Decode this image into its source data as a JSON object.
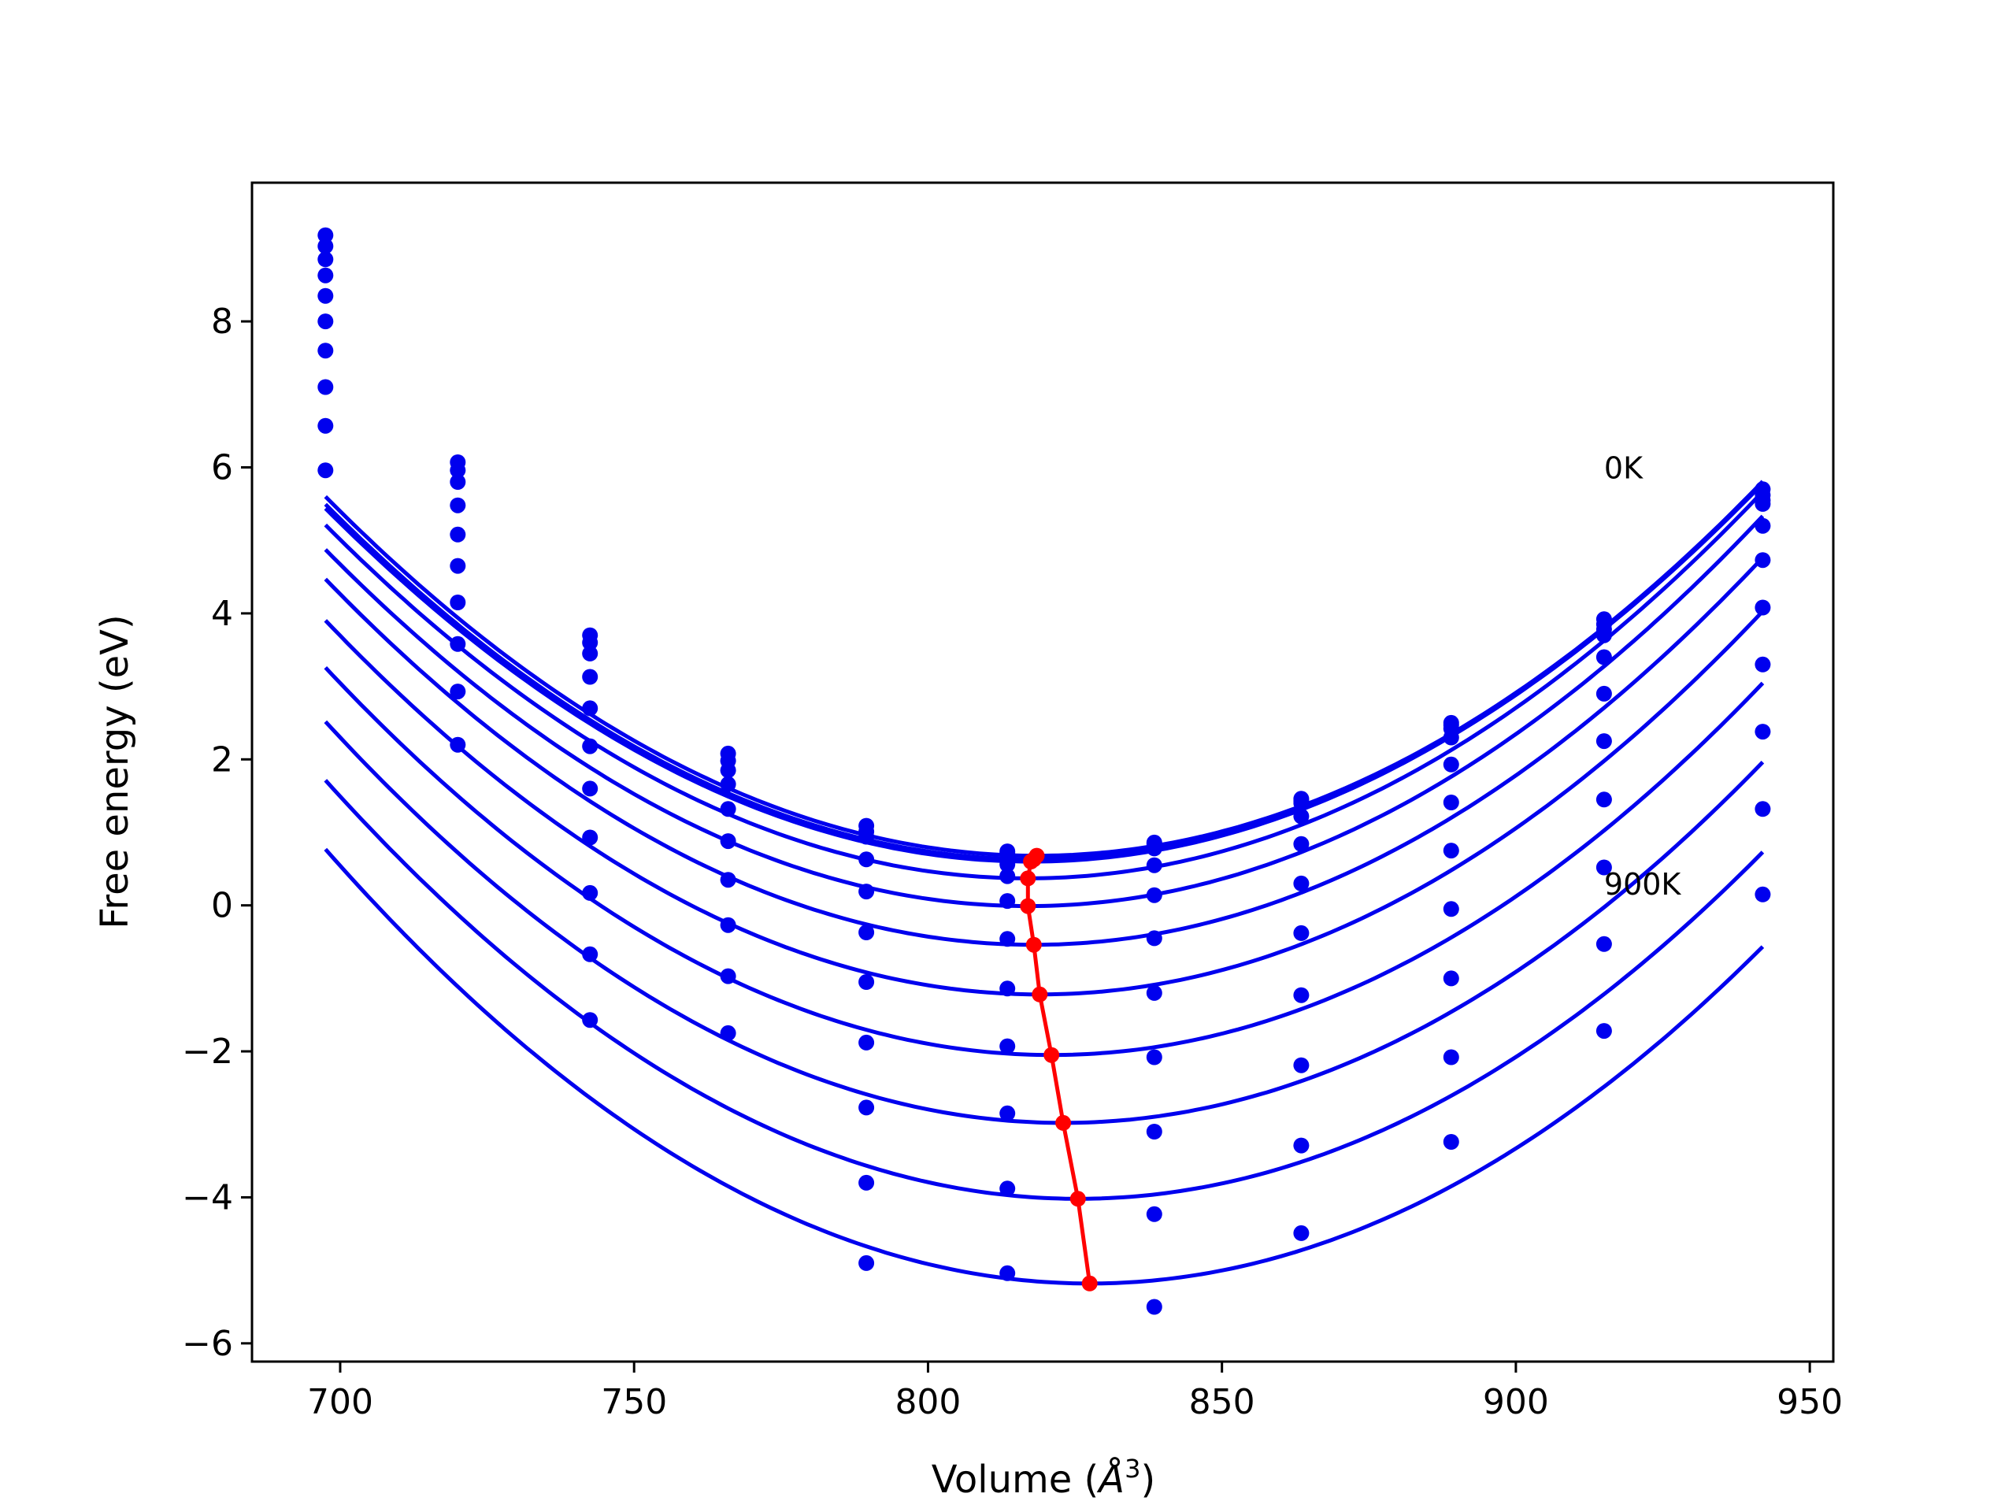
{
  "chart_data": {
    "type": "line",
    "xlabel": "Volume (",
    "xlabel_unit": "Å",
    "xlabel_exp": "3",
    "xlabel_close": ")",
    "ylabel": "Free energy (eV)",
    "xlim": [
      685,
      954
    ],
    "ylim": [
      -6.25,
      9.9
    ],
    "xticks": [
      700,
      750,
      800,
      850,
      900,
      950
    ],
    "yticks": [
      -6,
      -4,
      -2,
      0,
      2,
      4,
      6,
      8
    ],
    "ytick_labels": [
      "−6",
      "−4",
      "−2",
      "0",
      "2",
      "4",
      "6",
      "8"
    ],
    "grid": false,
    "colors": {
      "curves": "#0000ee",
      "minimum": "#ff0000"
    },
    "annotations": [
      {
        "text": "0K",
        "x": 915,
        "y": 5.85
      },
      {
        "text": "900K",
        "x": 915,
        "y": 0.15
      }
    ],
    "volumes": [
      697.5,
      720,
      742.5,
      766,
      789.5,
      813.5,
      838.5,
      863.5,
      889,
      915,
      942
    ],
    "series": [
      {
        "points": [
          9.18,
          6.07,
          3.7,
          2.08,
          1.09,
          0.74,
          0.86,
          1.46,
          2.5,
          3.92,
          5.7
        ],
        "fit": {
          "a": 0.000336,
          "v0": 818.5,
          "e0": 0.68
        }
      },
      {
        "points": [
          9.03,
          5.96,
          3.6,
          1.98,
          1.01,
          0.71,
          0.84,
          1.43,
          2.47,
          3.85,
          5.62
        ],
        "fit": {
          "a": 0.000335,
          "v0": 818.0,
          "e0": 0.63
        }
      },
      {
        "points": [
          8.85,
          5.8,
          3.45,
          1.85,
          0.94,
          0.56,
          0.78,
          1.4,
          2.42,
          3.78,
          5.55
        ],
        "fit": {
          "a": 0.000336,
          "v0": 817.5,
          "e0": 0.6
        }
      },
      {
        "points": [
          8.63,
          5.48,
          3.13,
          1.66,
          0.63,
          0.4,
          0.55,
          1.22,
          2.3,
          3.7,
          5.5
        ],
        "fit": {
          "a": 0.000339,
          "v0": 817.0,
          "e0": 0.37
        }
      },
      {
        "points": [
          8.35,
          5.08,
          2.7,
          1.32,
          0.19,
          0.06,
          0.14,
          0.84,
          1.93,
          3.4,
          5.2
        ],
        "fit": {
          "a": 0.000342,
          "v0": 817.0,
          "e0": -0.01
        }
      },
      {
        "points": [
          8.0,
          4.65,
          2.18,
          0.88,
          -0.37,
          -0.46,
          -0.45,
          0.3,
          1.41,
          2.9,
          4.73
        ],
        "fit": {
          "a": 0.000345,
          "v0": 818.0,
          "e0": -0.54
        }
      },
      {
        "points": [
          7.6,
          4.15,
          1.6,
          0.35,
          -1.05,
          -1.14,
          -1.2,
          -0.38,
          0.75,
          2.25,
          4.08
        ],
        "fit": {
          "a": 0.000347,
          "v0": 819.0,
          "e0": -1.22
        }
      },
      {
        "points": [
          7.1,
          3.58,
          0.93,
          -0.27,
          -1.88,
          -1.93,
          -2.08,
          -1.23,
          -0.05,
          1.45,
          3.3
        ],
        "fit": {
          "a": 0.000348,
          "v0": 821.0,
          "e0": -2.05
        }
      },
      {
        "points": [
          6.57,
          2.93,
          0.17,
          -0.97,
          -2.77,
          -2.85,
          -3.1,
          -2.19,
          -1.0,
          0.52,
          2.38
        ],
        "fit": {
          "a": 0.000349,
          "v0": 823.0,
          "e0": -2.98
        }
      },
      {
        "points": [
          5.96,
          2.2,
          -0.67,
          -1.75,
          -3.8,
          -3.88,
          -4.23,
          -3.29,
          -2.08,
          -0.53,
          1.32
        ],
        "fit": {
          "a": 0.00035,
          "v0": 825.5,
          "e0": -4.02
        }
      },
      {
        "points": [
          null,
          null,
          -1.57,
          null,
          -4.9,
          -5.04,
          -5.5,
          -4.49,
          -3.24,
          -1.72,
          0.15
        ],
        "fit": {
          "a": 0.000352,
          "v0": 827.5,
          "e0": -5.18
        }
      }
    ],
    "minimum_line": {
      "x": [
        818.5,
        818.0,
        817.5,
        817.0,
        817.0,
        818.0,
        819.0,
        821.0,
        823.0,
        825.5,
        827.5
      ],
      "y": [
        0.68,
        0.63,
        0.6,
        0.37,
        -0.01,
        -0.54,
        -1.22,
        -2.05,
        -2.98,
        -4.02,
        -5.18
      ]
    }
  }
}
